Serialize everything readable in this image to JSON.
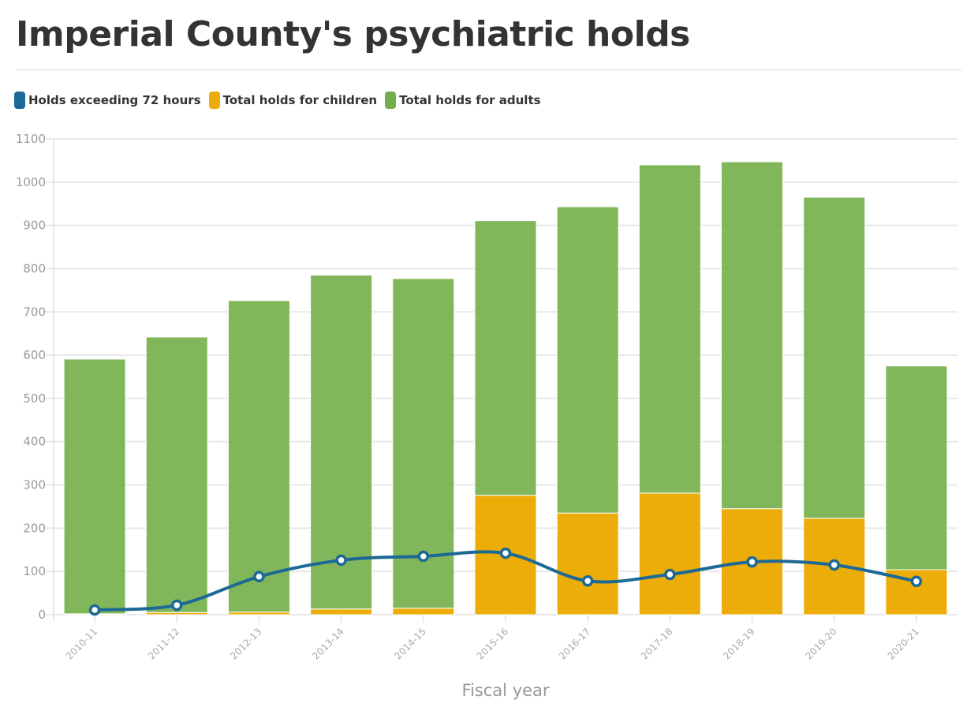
{
  "title": "Imperial County's psychiatric holds",
  "chart_data": {
    "type": "bar",
    "stacked": true,
    "title": "Imperial County's psychiatric holds",
    "xlabel": "Fiscal year",
    "ylabel": "",
    "ylim": [
      0,
      1100
    ],
    "yticks": [
      0,
      100,
      200,
      300,
      400,
      500,
      600,
      700,
      800,
      900,
      1000,
      1100
    ],
    "grid": true,
    "legend_placement": "top-left",
    "categories": [
      "2010-11",
      "2011-12",
      "2012-13",
      "2013-14",
      "2014-15",
      "2015-16",
      "2016-17",
      "2017-18",
      "2018-19",
      "2019-20",
      "2020-21"
    ],
    "series": [
      {
        "name": "Holds exceeding 72 hours",
        "type": "line",
        "color": "#1d6996",
        "values": [
          11,
          22,
          88,
          126,
          135,
          142,
          78,
          93,
          122,
          115,
          77
        ]
      },
      {
        "name": "Total holds for children",
        "type": "bar",
        "color": "#edad08",
        "values": [
          2,
          5,
          6,
          13,
          15,
          276,
          235,
          281,
          245,
          223,
          104
        ]
      },
      {
        "name": "Total holds for adults",
        "type": "bar",
        "color": "#73af48",
        "values": [
          589,
          637,
          720,
          772,
          762,
          635,
          708,
          759,
          802,
          742,
          471
        ]
      }
    ]
  }
}
